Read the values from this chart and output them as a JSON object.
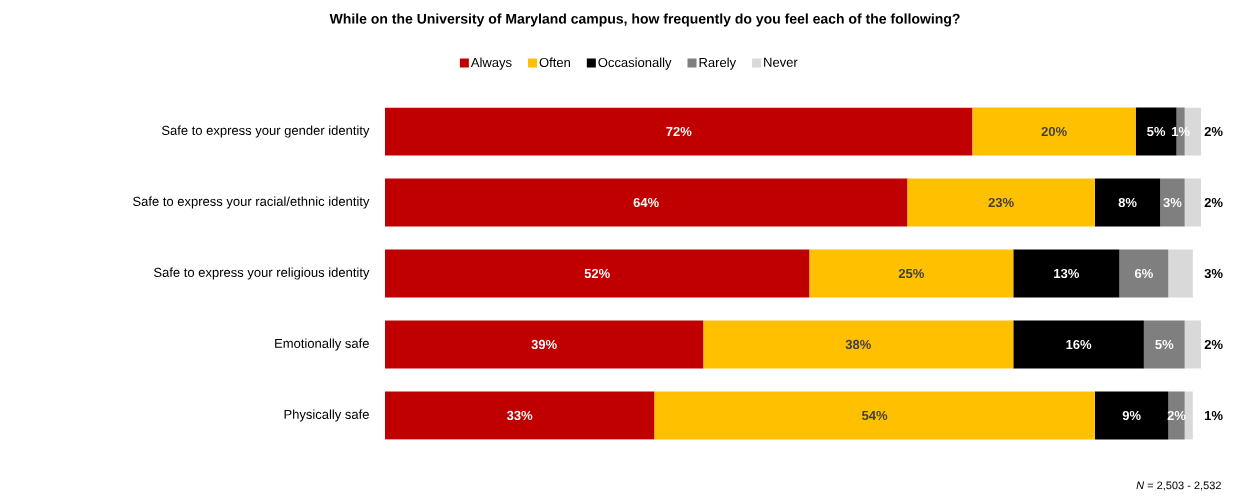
{
  "chart_data": {
    "type": "bar",
    "orientation": "horizontal",
    "stacked": true,
    "title": "While on the University of Maryland campus, how frequently do you feel each of the following?",
    "categories": [
      "Safe to express your gender identity",
      "Safe to express your racial/ethnic identity",
      "Safe to express your religious identity",
      "Emotionally safe",
      "Physically safe"
    ],
    "series": [
      {
        "name": "Always",
        "color": "#c00000",
        "values": [
          72,
          64,
          52,
          39,
          33
        ],
        "value_labels": [
          "72%",
          "64%",
          "52%",
          "39%",
          "33%"
        ]
      },
      {
        "name": "Often",
        "color": "#ffc000",
        "values": [
          20,
          23,
          25,
          38,
          54
        ],
        "value_labels": [
          "20%",
          "23%",
          "25%",
          "38%",
          "54%"
        ]
      },
      {
        "name": "Occasionally",
        "color": "#000000",
        "values": [
          5,
          8,
          13,
          16,
          9
        ],
        "value_labels": [
          "5%",
          "8%",
          "13%",
          "16%",
          "9%"
        ]
      },
      {
        "name": "Rarely",
        "color": "#7f7f7f",
        "values": [
          1,
          3,
          6,
          5,
          2
        ],
        "value_labels": [
          "1%",
          "3%",
          "6%",
          "5%",
          "2%"
        ]
      },
      {
        "name": "Never",
        "color": "#d9d9d9",
        "values": [
          2,
          2,
          3,
          2,
          1
        ],
        "value_labels": [
          "2%",
          "2%",
          "3%",
          "2%",
          "1%"
        ]
      }
    ],
    "xlim": [
      0,
      100
    ],
    "legend": "top",
    "annotations": [
      "*N* = 2,503 - 2,532"
    ]
  }
}
